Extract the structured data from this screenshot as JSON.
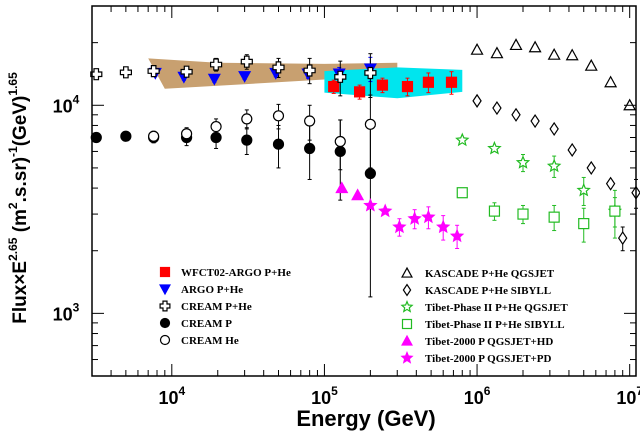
{
  "chart_data": {
    "type": "scatter",
    "xlabel": "Energy (GeV)",
    "ylabel": "Flux×E^2.65 (m^2.s.sr)^-1(GeV)^1.65",
    "xscale": "log",
    "yscale": "log",
    "xlim": [
      3000,
      11000000
    ],
    "ylim": [
      500,
      30000
    ],
    "x_ticks": [
      {
        "value": 10000,
        "base": "10",
        "exp": "4"
      },
      {
        "value": 100000,
        "base": "10",
        "exp": "5"
      },
      {
        "value": 1000000,
        "base": "10",
        "exp": "6"
      },
      {
        "value": 10000000,
        "base": "10",
        "exp": "7"
      }
    ],
    "y_ticks": [
      {
        "value": 1000,
        "base": "10",
        "exp": "3"
      },
      {
        "value": 10000,
        "base": "10",
        "exp": "4"
      }
    ],
    "bands": [
      {
        "name": "ARGO-YBJ band",
        "color": "#c8a070",
        "upper": [
          [
            7000,
            16800
          ],
          [
            20000,
            16000
          ],
          [
            100000,
            15800
          ],
          [
            300000,
            16000
          ]
        ],
        "lower": [
          [
            300000,
            13700
          ],
          [
            100000,
            13300
          ],
          [
            20000,
            12400
          ],
          [
            9000,
            12000
          ]
        ]
      },
      {
        "name": "WFCT02-ARGO band",
        "color": "#00e5ee",
        "upper": [
          [
            100000,
            14600
          ],
          [
            300000,
            15200
          ],
          [
            800000,
            14800
          ]
        ],
        "lower": [
          [
            800000,
            11600
          ],
          [
            300000,
            10800
          ],
          [
            100000,
            11500
          ]
        ]
      }
    ],
    "series": [
      {
        "name": "WFCT02-ARGO P+He",
        "marker": "square",
        "filled": true,
        "color": "#ff0000",
        "points": [
          {
            "x": 115000,
            "y": 12300,
            "lo": 11400,
            "hi": 13200
          },
          {
            "x": 170000,
            "y": 11600,
            "lo": 10700,
            "hi": 12500
          },
          {
            "x": 240000,
            "y": 12500,
            "lo": 11500,
            "hi": 13500
          },
          {
            "x": 350000,
            "y": 12300,
            "lo": 11100,
            "hi": 13500
          },
          {
            "x": 480000,
            "y": 12900,
            "lo": 11500,
            "hi": 14300
          },
          {
            "x": 680000,
            "y": 12900,
            "lo": 11300,
            "hi": 14500
          }
        ]
      },
      {
        "name": "ARGO P+He",
        "marker": "triangle-down",
        "filled": true,
        "color": "#0000ff",
        "points": [
          {
            "x": 7800,
            "y": 14300,
            "lo": 13800,
            "hi": 14800
          },
          {
            "x": 12000,
            "y": 13700,
            "lo": 13200,
            "hi": 14200
          },
          {
            "x": 19000,
            "y": 13400,
            "lo": 12900,
            "hi": 13900
          },
          {
            "x": 30000,
            "y": 13800,
            "lo": 13300,
            "hi": 14300
          },
          {
            "x": 48000,
            "y": 14300,
            "lo": 13700,
            "hi": 14900
          },
          {
            "x": 78000,
            "y": 14200,
            "lo": 13500,
            "hi": 14900
          },
          {
            "x": 125000,
            "y": 14200,
            "lo": 13200,
            "hi": 15200
          },
          {
            "x": 200000,
            "y": 15000,
            "lo": 13000,
            "hi": 17000
          }
        ]
      },
      {
        "name": "CREAM P+He",
        "marker": "cross-open",
        "filled": false,
        "color": "#000000",
        "points": [
          {
            "x": 3200,
            "y": 14100,
            "lo": 13700,
            "hi": 14500
          },
          {
            "x": 5000,
            "y": 14400,
            "lo": 14000,
            "hi": 14800
          },
          {
            "x": 7600,
            "y": 14600,
            "lo": 14100,
            "hi": 15100
          },
          {
            "x": 12500,
            "y": 14500,
            "lo": 13700,
            "hi": 15300
          },
          {
            "x": 19500,
            "y": 15700,
            "lo": 14600,
            "hi": 16800
          },
          {
            "x": 31000,
            "y": 16200,
            "lo": 14900,
            "hi": 17500
          },
          {
            "x": 50000,
            "y": 15200,
            "lo": 13600,
            "hi": 16800
          },
          {
            "x": 80000,
            "y": 14700,
            "lo": 12700,
            "hi": 16800
          },
          {
            "x": 127000,
            "y": 13700,
            "lo": 11100,
            "hi": 16300
          },
          {
            "x": 200000,
            "y": 14300,
            "lo": 10900,
            "hi": 17700
          }
        ]
      },
      {
        "name": "CREAM P",
        "marker": "circle",
        "filled": true,
        "color": "#000000",
        "points": [
          {
            "x": 3200,
            "y": 7000,
            "lo": 6700,
            "hi": 7300
          },
          {
            "x": 5000,
            "y": 7100,
            "lo": 6800,
            "hi": 7400
          },
          {
            "x": 7600,
            "y": 7000,
            "lo": 6600,
            "hi": 7400
          },
          {
            "x": 12500,
            "y": 7000,
            "lo": 6400,
            "hi": 7600
          },
          {
            "x": 19500,
            "y": 7000,
            "lo": 6200,
            "hi": 7800
          },
          {
            "x": 31000,
            "y": 6800,
            "lo": 5800,
            "hi": 7800
          },
          {
            "x": 50000,
            "y": 6500,
            "lo": 5000,
            "hi": 8000
          },
          {
            "x": 80000,
            "y": 6200,
            "lo": 4400,
            "hi": 8000
          },
          {
            "x": 127000,
            "y": 6000,
            "lo": 3500,
            "hi": 8500
          },
          {
            "x": 200000,
            "y": 4700,
            "lo": 1200,
            "hi": 8200
          }
        ]
      },
      {
        "name": "CREAM He",
        "marker": "circle",
        "filled": false,
        "color": "#000000",
        "points": [
          {
            "x": 7600,
            "y": 7100,
            "lo": 6700,
            "hi": 7500
          },
          {
            "x": 12500,
            "y": 7300,
            "lo": 6800,
            "hi": 7800
          },
          {
            "x": 19500,
            "y": 7900,
            "lo": 7200,
            "hi": 8600
          },
          {
            "x": 31000,
            "y": 8600,
            "lo": 7700,
            "hi": 9500
          },
          {
            "x": 50000,
            "y": 8900,
            "lo": 7700,
            "hi": 10100
          },
          {
            "x": 80000,
            "y": 8400,
            "lo": 6800,
            "hi": 10000
          },
          {
            "x": 127000,
            "y": 6700,
            "lo": 4900,
            "hi": 8500
          },
          {
            "x": 200000,
            "y": 8100,
            "lo": 5000,
            "hi": 11200
          }
        ]
      },
      {
        "name": "KASCADE P+He QGSJET",
        "marker": "triangle-up",
        "filled": false,
        "color": "#000000",
        "points": [
          {
            "x": 1000000,
            "y": 18500
          },
          {
            "x": 1350000,
            "y": 17800
          },
          {
            "x": 1800000,
            "y": 19500
          },
          {
            "x": 2400000,
            "y": 19000
          },
          {
            "x": 3200000,
            "y": 17500
          },
          {
            "x": 4200000,
            "y": 17400
          },
          {
            "x": 5600000,
            "y": 15500
          },
          {
            "x": 7500000,
            "y": 12900
          },
          {
            "x": 10000000,
            "y": 10000
          }
        ]
      },
      {
        "name": "KASCADE P+He SIBYLL",
        "marker": "diamond",
        "filled": false,
        "color": "#000000",
        "points": [
          {
            "x": 1000000,
            "y": 10500
          },
          {
            "x": 1350000,
            "y": 9700
          },
          {
            "x": 1800000,
            "y": 9000
          },
          {
            "x": 2400000,
            "y": 8400
          },
          {
            "x": 3200000,
            "y": 7700
          },
          {
            "x": 4200000,
            "y": 6100
          },
          {
            "x": 5600000,
            "y": 5000
          },
          {
            "x": 7500000,
            "y": 4200
          },
          {
            "x": 9000000,
            "y": 2300,
            "lo": 2000,
            "hi": 2600
          },
          {
            "x": 11000000,
            "y": 3800,
            "lo": 3200,
            "hi": 4400
          }
        ]
      },
      {
        "name": "Tibet-Phase II P+He QGSJET",
        "marker": "star-open",
        "filled": false,
        "color": "#22bb22",
        "points": [
          {
            "x": 800000,
            "y": 6800
          },
          {
            "x": 1300000,
            "y": 6200
          },
          {
            "x": 2000000,
            "y": 5300,
            "lo": 4800,
            "hi": 5800
          },
          {
            "x": 3200000,
            "y": 5100,
            "lo": 4500,
            "hi": 5700
          },
          {
            "x": 5000000,
            "y": 3900,
            "lo": 3300,
            "hi": 4500
          },
          {
            "x": 8000000,
            "y": 3100,
            "lo": 2600,
            "hi": 3600
          }
        ]
      },
      {
        "name": "Tibet-Phase II P+He SIBYLL",
        "marker": "square",
        "filled": false,
        "color": "#22bb22",
        "points": [
          {
            "x": 800000,
            "y": 3800
          },
          {
            "x": 1300000,
            "y": 3100,
            "lo": 2800,
            "hi": 3400
          },
          {
            "x": 2000000,
            "y": 3000,
            "lo": 2700,
            "hi": 3300
          },
          {
            "x": 3200000,
            "y": 2900,
            "lo": 2500,
            "hi": 3300
          },
          {
            "x": 5000000,
            "y": 2700,
            "lo": 2200,
            "hi": 3200
          },
          {
            "x": 8000000,
            "y": 3100,
            "lo": 2300,
            "hi": 3900
          }
        ]
      },
      {
        "name": "Tibet-2000 P QGSJET+HD",
        "marker": "triangle-up",
        "filled": true,
        "color": "#ff00ff",
        "points": [
          {
            "x": 130000,
            "y": 4000
          },
          {
            "x": 165000,
            "y": 3700
          }
        ]
      },
      {
        "name": "Tibet-2000 P QGSJET+PD",
        "marker": "star",
        "filled": true,
        "color": "#ff00ff",
        "points": [
          {
            "x": 200000,
            "y": 3300
          },
          {
            "x": 250000,
            "y": 3100
          },
          {
            "x": 310000,
            "y": 2600,
            "lo": 2350,
            "hi": 2850
          },
          {
            "x": 390000,
            "y": 2850,
            "lo": 2550,
            "hi": 3150
          },
          {
            "x": 480000,
            "y": 2900,
            "lo": 2550,
            "hi": 3250
          },
          {
            "x": 600000,
            "y": 2600,
            "lo": 2250,
            "hi": 2950
          },
          {
            "x": 740000,
            "y": 2350,
            "lo": 2050,
            "hi": 2650
          }
        ]
      }
    ],
    "legend_left": [
      "WFCT02-ARGO P+He",
      "ARGO P+He",
      "CREAM P+He",
      "CREAM P",
      "CREAM He"
    ],
    "legend_right": [
      "KASCADE P+He QGSJET",
      "KASCADE P+He SIBYLL",
      "Tibet-Phase II P+He QGSJET",
      "Tibet-Phase II P+He SIBYLL",
      "Tibet-2000 P QGSJET+HD",
      "Tibet-2000 P QGSJET+PD"
    ]
  }
}
